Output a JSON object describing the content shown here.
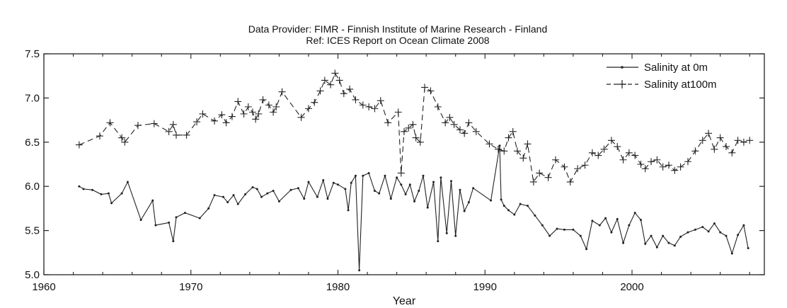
{
  "chart_data": {
    "type": "line",
    "title": "Data Provider: FIMR - Finnish Institute of Marine Research - Finland",
    "subtitle": "Ref: ICES Report on Ocean Climate 2008",
    "xlabel": "Year",
    "ylabel": "",
    "xlim": [
      1960,
      2009
    ],
    "ylim": [
      5.0,
      7.5
    ],
    "x_ticks": [
      1960,
      1970,
      1980,
      1990,
      2000
    ],
    "y_ticks": [
      "5.0",
      "5.5",
      "6.0",
      "6.5",
      "7.0",
      "7.5"
    ],
    "grid": false,
    "legend_position": "top-right",
    "series": [
      {
        "name": "Salinity at 0m",
        "marker": "dot",
        "points": [
          [
            1962.4,
            6.0
          ],
          [
            1962.7,
            5.97
          ],
          [
            1963.3,
            5.96
          ],
          [
            1963.9,
            5.91
          ],
          [
            1964.4,
            5.92
          ],
          [
            1964.6,
            5.81
          ],
          [
            1965.3,
            5.92
          ],
          [
            1965.7,
            6.05
          ],
          [
            1966.6,
            5.62
          ],
          [
            1967.4,
            5.84
          ],
          [
            1967.6,
            5.56
          ],
          [
            1968.5,
            5.59
          ],
          [
            1968.8,
            5.38
          ],
          [
            1969.0,
            5.65
          ],
          [
            1969.6,
            5.7
          ],
          [
            1970.6,
            5.64
          ],
          [
            1971.2,
            5.75
          ],
          [
            1971.6,
            5.9
          ],
          [
            1972.2,
            5.88
          ],
          [
            1972.5,
            5.82
          ],
          [
            1972.9,
            5.9
          ],
          [
            1973.2,
            5.8
          ],
          [
            1973.7,
            5.91
          ],
          [
            1974.2,
            5.99
          ],
          [
            1974.5,
            5.97
          ],
          [
            1974.8,
            5.88
          ],
          [
            1975.2,
            5.92
          ],
          [
            1975.6,
            5.95
          ],
          [
            1976.0,
            5.83
          ],
          [
            1976.8,
            5.96
          ],
          [
            1977.3,
            5.98
          ],
          [
            1977.7,
            5.86
          ],
          [
            1978.0,
            6.05
          ],
          [
            1978.6,
            5.88
          ],
          [
            1979.0,
            6.07
          ],
          [
            1979.3,
            5.86
          ],
          [
            1979.7,
            6.04
          ],
          [
            1980.0,
            6.02
          ],
          [
            1980.5,
            5.97
          ],
          [
            1980.7,
            5.73
          ],
          [
            1980.9,
            6.04
          ],
          [
            1981.2,
            6.12
          ],
          [
            1981.45,
            5.05
          ],
          [
            1981.7,
            6.12
          ],
          [
            1982.1,
            6.15
          ],
          [
            1982.5,
            5.95
          ],
          [
            1982.8,
            5.92
          ],
          [
            1983.2,
            6.12
          ],
          [
            1983.6,
            5.86
          ],
          [
            1984.0,
            6.1
          ],
          [
            1984.3,
            6.02
          ],
          [
            1984.6,
            5.91
          ],
          [
            1984.9,
            6.02
          ],
          [
            1985.2,
            5.83
          ],
          [
            1985.5,
            5.95
          ],
          [
            1985.8,
            6.12
          ],
          [
            1986.1,
            5.76
          ],
          [
            1986.5,
            6.05
          ],
          [
            1986.8,
            5.38
          ],
          [
            1987.0,
            6.1
          ],
          [
            1987.4,
            5.47
          ],
          [
            1987.7,
            6.06
          ],
          [
            1988.0,
            5.44
          ],
          [
            1988.3,
            5.96
          ],
          [
            1988.6,
            5.72
          ],
          [
            1988.9,
            5.82
          ],
          [
            1989.2,
            5.98
          ],
          [
            1990.4,
            5.84
          ],
          [
            1991.0,
            6.46
          ],
          [
            1991.1,
            5.85
          ],
          [
            1991.3,
            5.78
          ],
          [
            1991.6,
            5.73
          ],
          [
            1992.0,
            5.68
          ],
          [
            1992.4,
            5.8
          ],
          [
            1992.9,
            5.78
          ],
          [
            1993.4,
            5.67
          ],
          [
            1993.9,
            5.56
          ],
          [
            1994.4,
            5.44
          ],
          [
            1994.9,
            5.52
          ],
          [
            1995.4,
            5.51
          ],
          [
            1996.0,
            5.51
          ],
          [
            1996.5,
            5.44
          ],
          [
            1996.9,
            5.29
          ],
          [
            1997.3,
            5.61
          ],
          [
            1997.8,
            5.56
          ],
          [
            1998.2,
            5.64
          ],
          [
            1998.6,
            5.48
          ],
          [
            1999.0,
            5.63
          ],
          [
            1999.4,
            5.36
          ],
          [
            1999.8,
            5.56
          ],
          [
            2000.2,
            5.7
          ],
          [
            2000.6,
            5.62
          ],
          [
            2000.9,
            5.35
          ],
          [
            2001.3,
            5.44
          ],
          [
            2001.7,
            5.31
          ],
          [
            2002.1,
            5.44
          ],
          [
            2002.5,
            5.36
          ],
          [
            2002.9,
            5.33
          ],
          [
            2003.3,
            5.43
          ],
          [
            2003.8,
            5.48
          ],
          [
            2004.3,
            5.51
          ],
          [
            2004.8,
            5.54
          ],
          [
            2005.2,
            5.49
          ],
          [
            2005.6,
            5.58
          ],
          [
            2006.0,
            5.48
          ],
          [
            2006.4,
            5.44
          ],
          [
            2006.8,
            5.24
          ],
          [
            2007.2,
            5.45
          ],
          [
            2007.6,
            5.56
          ],
          [
            2007.9,
            5.3
          ]
        ]
      },
      {
        "name": "Salinity at100m",
        "marker": "plus",
        "points": [
          [
            1962.4,
            6.47
          ],
          [
            1963.8,
            6.57
          ],
          [
            1964.5,
            6.72
          ],
          [
            1965.3,
            6.55
          ],
          [
            1965.5,
            6.5
          ],
          [
            1966.4,
            6.69
          ],
          [
            1967.5,
            6.71
          ],
          [
            1968.5,
            6.62
          ],
          [
            1968.8,
            6.7
          ],
          [
            1969.0,
            6.58
          ],
          [
            1969.7,
            6.58
          ],
          [
            1970.4,
            6.73
          ],
          [
            1970.8,
            6.82
          ],
          [
            1971.6,
            6.74
          ],
          [
            1972.1,
            6.81
          ],
          [
            1972.4,
            6.72
          ],
          [
            1972.8,
            6.79
          ],
          [
            1973.2,
            6.96
          ],
          [
            1973.6,
            6.82
          ],
          [
            1973.9,
            6.9
          ],
          [
            1974.2,
            6.84
          ],
          [
            1974.4,
            6.76
          ],
          [
            1974.6,
            6.82
          ],
          [
            1974.9,
            6.98
          ],
          [
            1975.3,
            6.92
          ],
          [
            1975.6,
            6.84
          ],
          [
            1975.8,
            6.9
          ],
          [
            1976.2,
            7.07
          ],
          [
            1977.5,
            6.78
          ],
          [
            1978.0,
            6.88
          ],
          [
            1978.4,
            6.95
          ],
          [
            1978.8,
            7.08
          ],
          [
            1979.1,
            7.2
          ],
          [
            1979.5,
            7.15
          ],
          [
            1979.8,
            7.28
          ],
          [
            1980.1,
            7.2
          ],
          [
            1980.4,
            7.05
          ],
          [
            1980.8,
            7.1
          ],
          [
            1981.2,
            6.98
          ],
          [
            1981.7,
            6.92
          ],
          [
            1982.1,
            6.9
          ],
          [
            1982.5,
            6.88
          ],
          [
            1982.9,
            6.97
          ],
          [
            1983.4,
            6.72
          ],
          [
            1984.1,
            6.84
          ],
          [
            1984.3,
            6.15
          ],
          [
            1984.5,
            6.62
          ],
          [
            1984.8,
            6.66
          ],
          [
            1985.1,
            6.7
          ],
          [
            1985.3,
            6.55
          ],
          [
            1985.6,
            6.5
          ],
          [
            1985.9,
            7.12
          ],
          [
            1986.3,
            7.08
          ],
          [
            1986.8,
            6.9
          ],
          [
            1987.3,
            6.72
          ],
          [
            1987.6,
            6.78
          ],
          [
            1987.9,
            6.7
          ],
          [
            1988.3,
            6.64
          ],
          [
            1988.6,
            6.6
          ],
          [
            1988.9,
            6.72
          ],
          [
            1989.4,
            6.62
          ],
          [
            1990.3,
            6.48
          ],
          [
            1990.9,
            6.42
          ],
          [
            1991.3,
            6.4
          ],
          [
            1991.6,
            6.55
          ],
          [
            1991.9,
            6.62
          ],
          [
            1992.2,
            6.4
          ],
          [
            1992.6,
            6.32
          ],
          [
            1992.9,
            6.48
          ],
          [
            1993.3,
            6.05
          ],
          [
            1993.7,
            6.15
          ],
          [
            1994.3,
            6.1
          ],
          [
            1994.8,
            6.3
          ],
          [
            1995.4,
            6.22
          ],
          [
            1995.8,
            6.05
          ],
          [
            1996.3,
            6.2
          ],
          [
            1996.8,
            6.24
          ],
          [
            1997.3,
            6.38
          ],
          [
            1997.7,
            6.35
          ],
          [
            1998.1,
            6.42
          ],
          [
            1998.6,
            6.52
          ],
          [
            1999.0,
            6.45
          ],
          [
            1999.4,
            6.3
          ],
          [
            1999.8,
            6.38
          ],
          [
            2000.2,
            6.35
          ],
          [
            2000.6,
            6.25
          ],
          [
            2000.9,
            6.2
          ],
          [
            2001.3,
            6.28
          ],
          [
            2001.7,
            6.3
          ],
          [
            2002.1,
            6.22
          ],
          [
            2002.5,
            6.24
          ],
          [
            2002.9,
            6.18
          ],
          [
            2003.3,
            6.22
          ],
          [
            2003.8,
            6.28
          ],
          [
            2004.3,
            6.4
          ],
          [
            2004.8,
            6.52
          ],
          [
            2005.2,
            6.6
          ],
          [
            2005.6,
            6.42
          ],
          [
            2006.0,
            6.55
          ],
          [
            2006.4,
            6.45
          ],
          [
            2006.8,
            6.38
          ],
          [
            2007.2,
            6.52
          ],
          [
            2007.6,
            6.5
          ],
          [
            2008.0,
            6.52
          ]
        ]
      }
    ]
  }
}
